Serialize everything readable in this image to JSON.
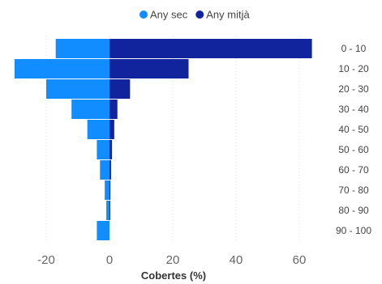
{
  "chart_data": {
    "type": "bar",
    "orientation": "horizontal",
    "stacking": "diverging",
    "categories": [
      "0 - 10",
      "10 - 20",
      "20 - 30",
      "30 - 40",
      "40 - 50",
      "50 - 60",
      "60 - 70",
      "70 - 80",
      "80 - 90",
      "90 - 100"
    ],
    "series": [
      {
        "name": "Any sec",
        "color": "#118dff",
        "values": [
          -17,
          -30,
          -20,
          -12,
          -7,
          -4,
          -3,
          -1.5,
          -1,
          -4
        ]
      },
      {
        "name": "Any mitjà",
        "color": "#12239e",
        "values": [
          64,
          25,
          6.5,
          2.5,
          1.5,
          0.8,
          0.5,
          0.3,
          0.2,
          0
        ]
      }
    ],
    "xlabel": "Cobertes (%)",
    "xlim": [
      -30,
      64
    ],
    "xticks": [
      -20,
      0,
      20,
      40,
      60
    ],
    "legend_position": "top-center",
    "grid": true
  }
}
